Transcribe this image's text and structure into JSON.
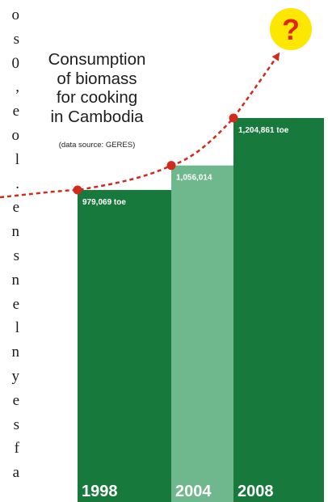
{
  "page_edge_text": [
    "o",
    "s",
    "0",
    ",",
    "e",
    "o",
    "l",
    ".",
    "e",
    "n",
    "s",
    "n",
    "e",
    "l",
    "n",
    "y",
    "e",
    "s",
    "f",
    "a"
  ],
  "chart_data": {
    "type": "bar",
    "title": "Consumption\nof biomass\nfor cooking\nin Cambodia",
    "subtitle": "(data source: GERES)",
    "categories": [
      "1998",
      "2004",
      "2008"
    ],
    "values": [
      979069,
      1056014,
      1204861
    ],
    "value_labels": [
      "979,069 toe",
      "1,056,014",
      "1,204,861 toe"
    ],
    "unit": "toe",
    "ylim": [
      0,
      1300000
    ],
    "future_marker": "?",
    "trend_line": "dashed red curve through bar tops with arrow pointing to the future marker",
    "colors": {
      "bar_dark": "#177a3c",
      "bar_light": "#6fb78c",
      "trend": "#d22a1c",
      "marker_fill": "#fde600",
      "marker_text": "#e0261d"
    }
  }
}
